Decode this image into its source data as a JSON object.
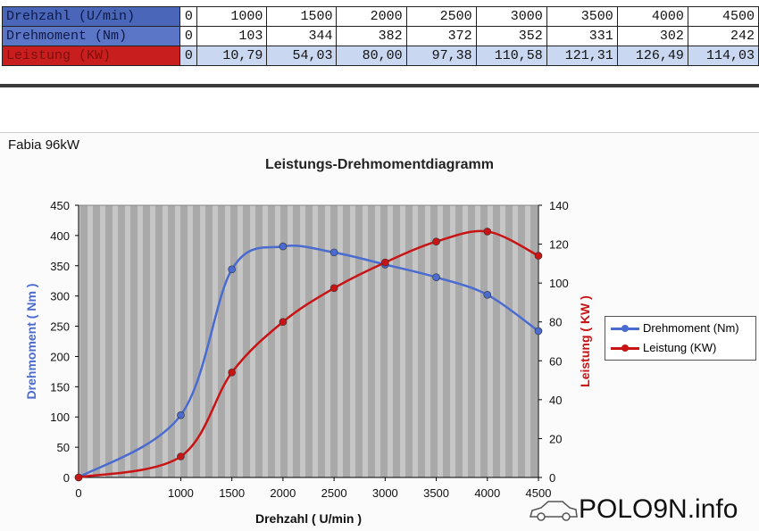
{
  "table": {
    "rows": [
      {
        "label": "Drehzahl (U/min)",
        "cells": [
          "0",
          "1000",
          "1500",
          "2000",
          "2500",
          "3000",
          "3500",
          "4000",
          "4500"
        ]
      },
      {
        "label": "Drehmoment (Nm)",
        "cells": [
          "0",
          "103",
          "344",
          "382",
          "372",
          "352",
          "331",
          "302",
          "242"
        ]
      },
      {
        "label": "Leistung (KW)",
        "cells": [
          "0",
          "10,79",
          "54,03",
          "80,00",
          "97,38",
          "110,58",
          "121,31",
          "126,49",
          "114,03"
        ]
      }
    ]
  },
  "corner_label": "Fabia 96kW",
  "logo_text": "POLO9N.info",
  "chart_data": {
    "type": "line",
    "title": "Leistungs-Drehmomentdiagramm",
    "xlabel": "Drehzahl ( U/min )",
    "ylabel_left": "Drehmoment ( Nm )",
    "ylabel_right": "Leistung ( KW )",
    "x": [
      0,
      1000,
      1500,
      2000,
      2500,
      3000,
      3500,
      4000,
      4500
    ],
    "xlim": [
      0,
      4500
    ],
    "xticks": [
      "0",
      "1000",
      "1500",
      "2000",
      "2500",
      "3000",
      "3500",
      "4000",
      "4500"
    ],
    "ylim_left": [
      0,
      450
    ],
    "yticks_left": [
      "0",
      "50",
      "100",
      "150",
      "200",
      "250",
      "300",
      "350",
      "400",
      "450"
    ],
    "ylim_right": [
      0,
      140
    ],
    "yticks_right": [
      "0",
      "20",
      "40",
      "60",
      "80",
      "100",
      "120",
      "140"
    ],
    "series": [
      {
        "name": "Drehmoment (Nm)",
        "axis": "left",
        "color": "#4a6bd0",
        "values": [
          0,
          103,
          344,
          382,
          372,
          352,
          331,
          302,
          242
        ]
      },
      {
        "name": "Leistung (KW)",
        "axis": "right",
        "color": "#c81414",
        "values": [
          0,
          10.79,
          54.03,
          80.0,
          97.38,
          110.58,
          121.31,
          126.49,
          114.03
        ]
      }
    ],
    "legend_position": "right",
    "grid": false
  }
}
